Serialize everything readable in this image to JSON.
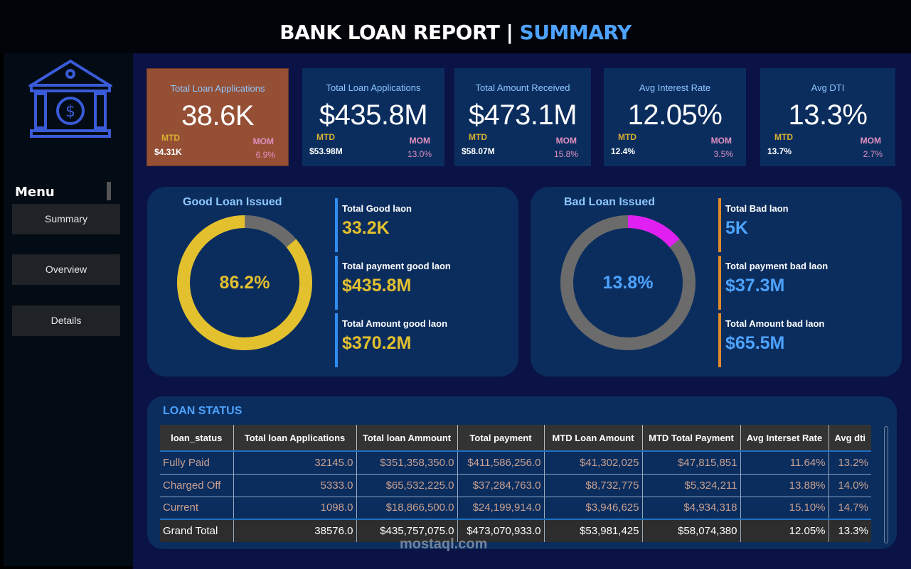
{
  "header": {
    "title": "BANK LOAN REPORT | ",
    "title_accent": "SUMMARY"
  },
  "sidebar": {
    "menu_title": "Menu",
    "items": [
      {
        "label": "Summary"
      },
      {
        "label": "Overview"
      },
      {
        "label": "Details"
      }
    ]
  },
  "kpis": [
    {
      "label": "Total Loan Applications",
      "value": "38.6K",
      "mtd_label": "MTD",
      "mtd_value": "$4.31K",
      "mom_label": "MOM",
      "mom_value": "6.9%"
    },
    {
      "label": "Total Loan Applications",
      "value": "$435.8M",
      "mtd_label": "MTD",
      "mtd_value": "$53.98M",
      "mom_label": "MOM",
      "mom_value": "13.0%"
    },
    {
      "label": "Total Amount Received",
      "value": "$473.1M",
      "mtd_label": "MTD",
      "mtd_value": "$58.07M",
      "mom_label": "MOM",
      "mom_value": "15.8%"
    },
    {
      "label": "Avg Interest Rate",
      "value": "12.05%",
      "mtd_label": "MTD",
      "mtd_value": "12.4%",
      "mom_label": "MOM",
      "mom_value": "3.5%"
    },
    {
      "label": "Avg DTI",
      "value": "13.3%",
      "mtd_label": "MTD",
      "mtd_value": "13.7%",
      "mom_label": "MOM",
      "mom_value": "2.7%"
    }
  ],
  "good": {
    "title": "Good Loan Issued",
    "percent_label": "86.2%",
    "percent": 86.2,
    "color": "#e3c02e",
    "stats": [
      {
        "label": "Total Good laon",
        "value": "33.2K"
      },
      {
        "label": "Total payment good laon",
        "value": "$435.8M"
      },
      {
        "label": "Total Amount good laon",
        "value": "$370.2M"
      }
    ]
  },
  "bad": {
    "title": "Bad Loan Issued",
    "percent_label": "13.8%",
    "percent": 13.8,
    "color": "#e020f0",
    "stats": [
      {
        "label": "Total Bad laon",
        "value": "5K"
      },
      {
        "label": "Total payment bad laon",
        "value": "$37.3M"
      },
      {
        "label": "Total Amount bad laon",
        "value": "$65.5M"
      }
    ]
  },
  "loan_status": {
    "title": "LOAN STATUS",
    "columns": [
      "loan_status",
      "Total loan Applications",
      "Total loan Ammount",
      "Total payment",
      "MTD Loan Amount",
      "MTD Total Payment",
      "Avg Interset Rate",
      "Avg dti"
    ],
    "rows": [
      [
        "Fully Paid",
        "32145.0",
        "$351,358,350.0",
        "$411,586,256.0",
        "$41,302,025",
        "$47,815,851",
        "11.64%",
        "13.2%"
      ],
      [
        "Charged Off",
        "5333.0",
        "$65,532,225.0",
        "$37,284,763.0",
        "$8,732,775",
        "$5,324,211",
        "13.88%",
        "14.0%"
      ],
      [
        "Current",
        "1098.0",
        "$18,866,500.0",
        "$24,199,914.0",
        "$3,946,625",
        "$4,934,318",
        "15.10%",
        "14.7%"
      ],
      [
        "Grand Total",
        "38576.0",
        "$435,757,075.0",
        "$473,070,933.0",
        "$53,981,425",
        "$58,074,380",
        "12.05%",
        "13.3%"
      ]
    ]
  },
  "watermark": "mostaql.com"
}
